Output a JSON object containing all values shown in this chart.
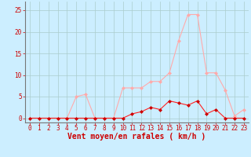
{
  "x": [
    0,
    1,
    2,
    3,
    4,
    5,
    6,
    7,
    8,
    9,
    10,
    11,
    12,
    13,
    14,
    15,
    16,
    17,
    18,
    19,
    20,
    21,
    22,
    23
  ],
  "y_moyen": [
    0,
    0,
    0,
    0,
    0,
    0,
    0,
    0,
    0,
    0,
    0,
    1,
    1.5,
    2.5,
    2,
    4,
    3.5,
    3,
    4,
    1,
    2,
    0,
    0,
    0
  ],
  "y_rafales": [
    0,
    0,
    0,
    0,
    0,
    5,
    5.5,
    0,
    0,
    0,
    7,
    7,
    7,
    8.5,
    8.5,
    10.5,
    18,
    24,
    24,
    10.5,
    10.5,
    6.5,
    0.5,
    2
  ],
  "background_color": "#cceeff",
  "grid_color": "#aacccc",
  "line_color_moyen": "#ff2222",
  "line_color_rafales": "#ffaaaa",
  "marker_color_moyen": "#cc0000",
  "marker_color_rafales": "#ffaaaa",
  "xlabel": "Vent moyen/en rafales ( km/h )",
  "xlim": [
    -0.5,
    23.5
  ],
  "ylim": [
    -1,
    27
  ],
  "yticks": [
    0,
    5,
    10,
    15,
    20,
    25
  ],
  "xticks": [
    0,
    1,
    2,
    3,
    4,
    5,
    6,
    7,
    8,
    9,
    10,
    11,
    12,
    13,
    14,
    15,
    16,
    17,
    18,
    19,
    20,
    21,
    22,
    23
  ],
  "tick_fontsize": 5.5,
  "xlabel_fontsize": 7
}
